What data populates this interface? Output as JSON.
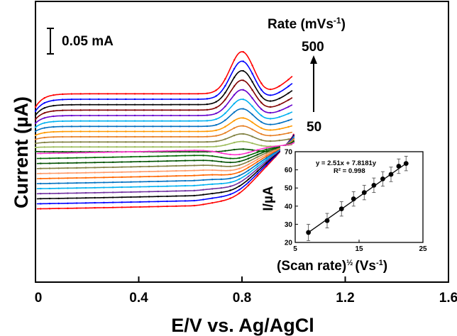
{
  "chart_data": [
    {
      "type": "line",
      "xlabel": "E/V vs. Ag/AgCl",
      "ylabel": "Current (µA)",
      "xlim": [
        0,
        1.6
      ],
      "x_ticks": [
        "0",
        "0.4",
        "0.8",
        "1.2",
        "1.6"
      ],
      "scale_bar_label": "0.05 mA",
      "legend_title": "Rate (mVs",
      "legend_title_sup": "-1",
      "legend_title_end": ")",
      "rate_high_label": "500",
      "rate_low_label": "50",
      "series_colors": [
        "#ff0000",
        "#0000ff",
        "#000000",
        "#800000",
        "#6600cc",
        "#00b0f0",
        "#0070c0",
        "#ff9900",
        "#e67e22",
        "#7f7f3f",
        "#9bbb59",
        "#005000"
      ],
      "series": [
        {
          "ox": 40,
          "ap": 38,
          "pk": 31
        },
        {
          "ox": 36,
          "ap": 34,
          "pk": 28
        },
        {
          "ox": 32,
          "ap": 30,
          "pk": 25
        },
        {
          "ox": 28,
          "ap": 26,
          "pk": 22
        },
        {
          "ox": 24,
          "ap": 22,
          "pk": 19
        },
        {
          "ox": 20,
          "ap": 18,
          "pk": 16
        },
        {
          "ox": 16,
          "ap": 14,
          "pk": 13
        },
        {
          "ox": 12,
          "ap": 11,
          "pk": 10
        },
        {
          "ox": 8,
          "ap": 7.5,
          "pk": 8
        },
        {
          "ox": 4,
          "ap": 4,
          "pk": 6
        },
        {
          "ox": 0,
          "ap": 1.5,
          "pk": 4
        },
        {
          "ox": -4,
          "ap": -1,
          "pk": 2
        }
      ],
      "reduction_colors": [
        "#ff0000",
        "#0000ff",
        "#000000",
        "#7030a0",
        "#00b0f0",
        "#0070c0",
        "#ff6600",
        "#ff9966",
        "#7f7f3f",
        "#005000",
        "#006600",
        "#ff33cc"
      ],
      "reduction_series": [
        {
          "red": 52
        },
        {
          "red": 47
        },
        {
          "red": 42
        },
        {
          "red": 37
        },
        {
          "red": 32
        },
        {
          "red": 27
        },
        {
          "red": 22
        },
        {
          "red": 17
        },
        {
          "red": 12
        },
        {
          "red": 7
        },
        {
          "red": 2
        },
        {
          "red": -3
        }
      ]
    },
    {
      "type": "scatter",
      "xlabel": "(Scan rate)",
      "xlabel_sup": "½",
      "xlabel_units": "(Vs",
      "xlabel_units_sup": "-1",
      "xlabel_units_end": ")",
      "ylabel": "I/µA",
      "xlim": [
        5,
        25
      ],
      "ylim": [
        20,
        70
      ],
      "x_ticks": [
        "5",
        "15",
        "25"
      ],
      "y_ticks": [
        "20",
        "30",
        "40",
        "50",
        "60",
        "70"
      ],
      "equation": "y = 2.51x + 7.8181y",
      "r_squared": "R² = 0.998",
      "x": [
        7.07,
        10.0,
        12.25,
        14.14,
        15.81,
        17.32,
        18.71,
        20.0,
        21.21,
        22.36
      ],
      "y": [
        25.5,
        32.0,
        38.5,
        44.0,
        47.5,
        51.5,
        55.0,
        57.5,
        62.0,
        63.5
      ],
      "error": [
        4.5,
        4.0,
        4.0,
        4.0,
        4.0,
        4.0,
        4.0,
        4.0,
        4.0,
        4.0
      ]
    }
  ]
}
